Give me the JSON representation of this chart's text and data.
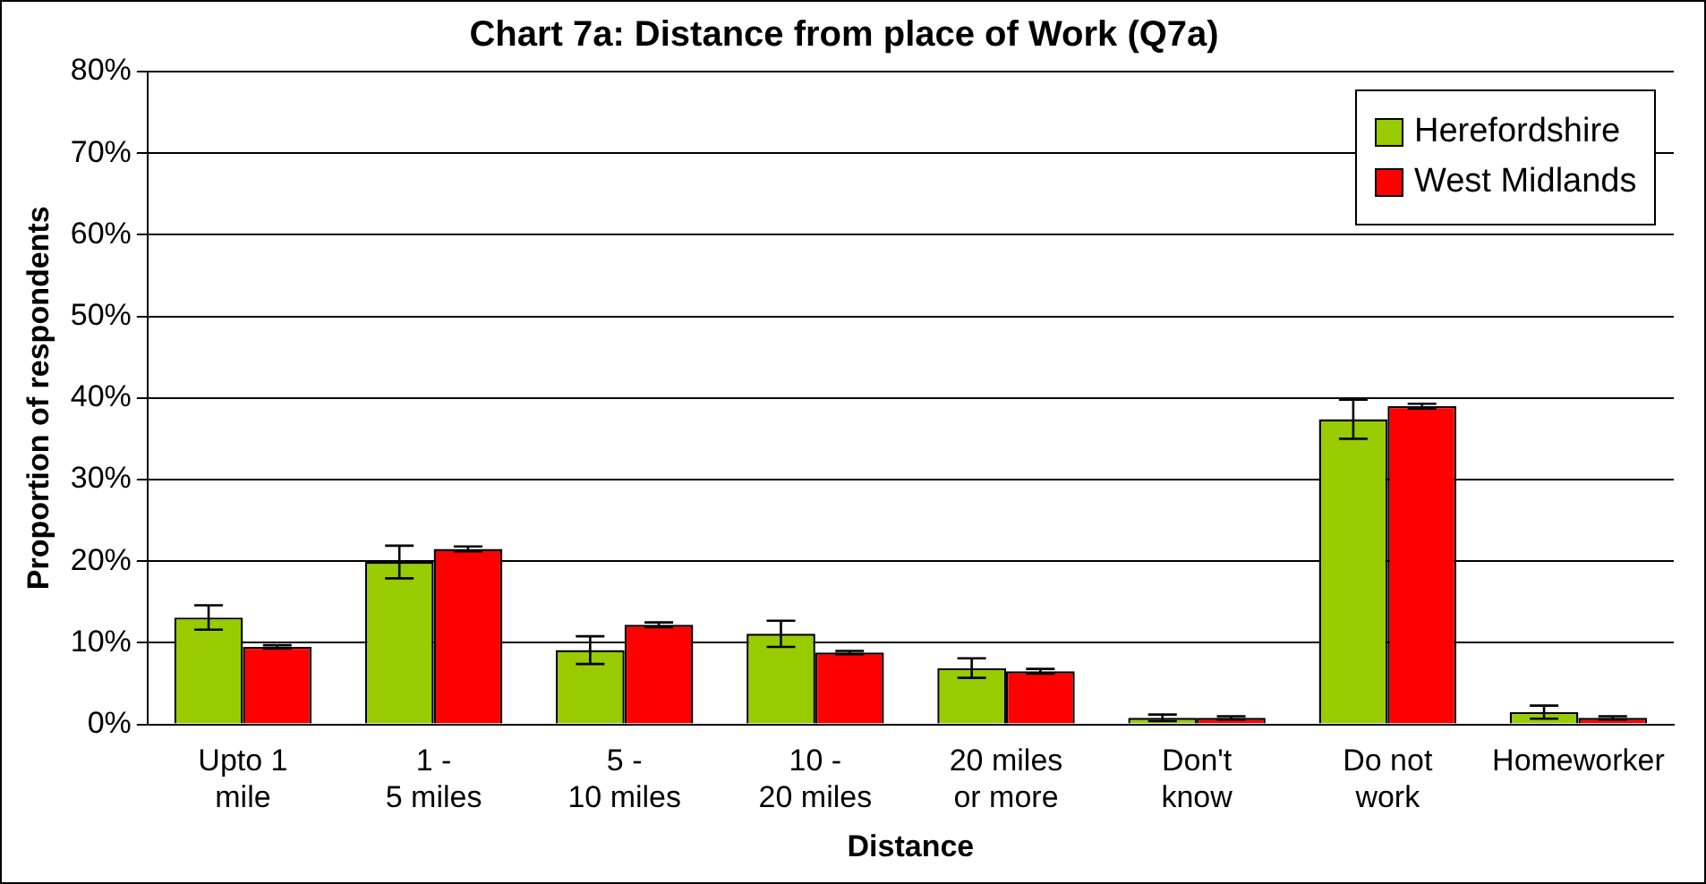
{
  "chart_data": {
    "type": "bar",
    "title": "Chart 7a: Distance from place of Work (Q7a)",
    "xlabel": "Distance",
    "ylabel": "Proportion of respondents",
    "categories": [
      "Upto 1 mile",
      "1 - 5 miles",
      "5 - 10 miles",
      "10 - 20 miles",
      "20 miles or more",
      "Don't know",
      "Do not work",
      "Homeworker"
    ],
    "series": [
      {
        "name": "Herefordshire",
        "color": "#99cc00",
        "values": [
          13.1,
          19.9,
          9.1,
          11.1,
          6.9,
          0.8,
          37.4,
          1.5
        ],
        "errors": [
          1.5,
          2.0,
          1.7,
          1.6,
          1.2,
          0.4,
          2.4,
          0.8
        ]
      },
      {
        "name": "West Midlands",
        "color": "#ff0000",
        "values": [
          9.5,
          21.5,
          12.2,
          8.8,
          6.5,
          0.8,
          39.0,
          0.8
        ],
        "errors": [
          0.2,
          0.3,
          0.3,
          0.2,
          0.3,
          0.2,
          0.3,
          0.2
        ]
      }
    ],
    "ylim": [
      0,
      80
    ],
    "yticks": [
      {
        "value": 0,
        "label": "0%"
      },
      {
        "value": 10,
        "label": "10%"
      },
      {
        "value": 20,
        "label": "20%"
      },
      {
        "value": 30,
        "label": "30%"
      },
      {
        "value": 40,
        "label": "40%"
      },
      {
        "value": 50,
        "label": "50%"
      },
      {
        "value": 60,
        "label": "60%"
      },
      {
        "value": 70,
        "label": "70%"
      },
      {
        "value": 80,
        "label": "80%"
      }
    ],
    "grid": "y",
    "legend": "top right"
  }
}
